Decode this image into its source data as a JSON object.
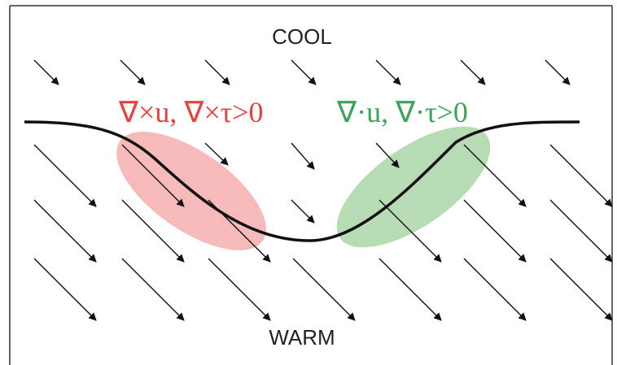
{
  "labels": {
    "cool": "COOL",
    "warm": "WARM",
    "curl": "∇×u, ∇×τ>0",
    "divergence": "∇·u, ∇·τ>0"
  },
  "colors": {
    "curl": "#e8403f",
    "divergence": "#3aa35a",
    "curl_region": "#f4a3a3",
    "divergence_region": "#9fcf9a",
    "front": "#111111",
    "arrows": "#111111"
  }
}
